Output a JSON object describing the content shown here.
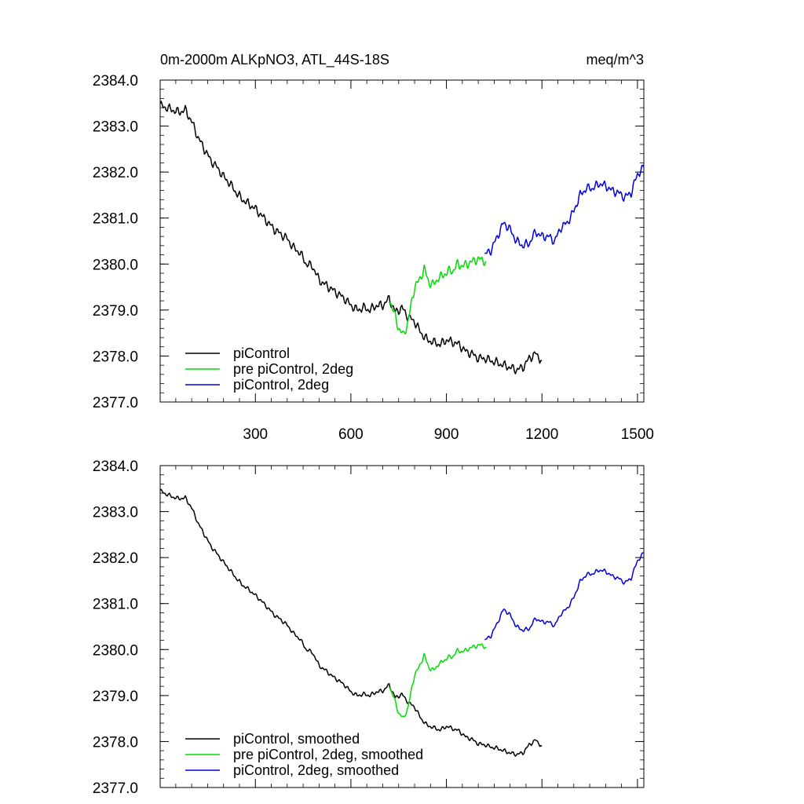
{
  "figure": {
    "title_left": "0m-2000m ALKpNO3, ATL_44S-18S",
    "title_right": "meq/m^3"
  },
  "chart_data": [
    {
      "type": "line",
      "title": "0m-2000m ALKpNO3, ATL_44S-18S",
      "units": "meq/m^3",
      "xlim": [
        1,
        1520
      ],
      "ylim": [
        2377.0,
        2384.0
      ],
      "x_ticks": [
        300,
        600,
        900,
        1200,
        1500
      ],
      "x_tick_labels": [
        "300",
        "600",
        "900",
        "1200",
        "1500"
      ],
      "y_ticks": [
        2377,
        2378,
        2379,
        2380,
        2381,
        2382,
        2383,
        2384
      ],
      "y_tick_labels": [
        "2377.0",
        "2378.0",
        "2379.0",
        "2380.0",
        "2381.0",
        "2382.0",
        "2383.0",
        "2384.0"
      ],
      "legend_position": "bottom-left",
      "series": [
        {
          "name": "piControl",
          "color": "#000000",
          "x": [
            1,
            20,
            40,
            60,
            80,
            100,
            120,
            140,
            160,
            180,
            200,
            220,
            240,
            260,
            280,
            300,
            320,
            340,
            360,
            380,
            400,
            420,
            440,
            460,
            480,
            500,
            520,
            540,
            560,
            580,
            600,
            620,
            640,
            660,
            680,
            700,
            720,
            740,
            760,
            780,
            800,
            820,
            840,
            860,
            880,
            900,
            920,
            940,
            960,
            980,
            1000,
            1020,
            1040,
            1060,
            1080,
            1100,
            1120,
            1140,
            1160,
            1180,
            1200
          ],
          "y": [
            2383.45,
            2383.4,
            2383.35,
            2383.3,
            2383.35,
            2383.1,
            2382.75,
            2382.5,
            2382.25,
            2382.1,
            2381.9,
            2381.75,
            2381.55,
            2381.4,
            2381.3,
            2381.2,
            2381.05,
            2380.9,
            2380.75,
            2380.65,
            2380.55,
            2380.35,
            2380.25,
            2380.0,
            2379.95,
            2379.65,
            2379.55,
            2379.45,
            2379.35,
            2379.25,
            2379.1,
            2379.0,
            2379.05,
            2379.0,
            2379.1,
            2379.1,
            2379.25,
            2378.95,
            2379.05,
            2378.85,
            2378.75,
            2378.5,
            2378.35,
            2378.3,
            2378.25,
            2378.35,
            2378.3,
            2378.25,
            2378.1,
            2378.05,
            2377.95,
            2377.95,
            2377.9,
            2377.85,
            2377.8,
            2377.75,
            2377.7,
            2377.75,
            2377.95,
            2378.05,
            2377.9
          ]
        },
        {
          "name": "pre piControl, 2deg",
          "color": "#00dd00",
          "x": [
            720,
            735,
            750,
            765,
            780,
            790,
            800,
            815,
            830,
            845,
            860,
            875,
            890,
            905,
            920,
            935,
            950,
            965,
            980,
            995,
            1010,
            1025
          ],
          "y": [
            2379.25,
            2378.95,
            2378.6,
            2378.45,
            2378.75,
            2379.15,
            2379.5,
            2379.65,
            2379.9,
            2379.6,
            2379.55,
            2379.7,
            2379.75,
            2379.85,
            2379.85,
            2380.0,
            2379.95,
            2380.0,
            2380.05,
            2380.1,
            2380.1,
            2380.05
          ]
        },
        {
          "name": "piControl, 2deg",
          "color": "#0000dd",
          "x": [
            1020,
            1040,
            1060,
            1080,
            1100,
            1120,
            1140,
            1160,
            1180,
            1200,
            1220,
            1240,
            1260,
            1280,
            1300,
            1320,
            1340,
            1360,
            1380,
            1400,
            1420,
            1440,
            1460,
            1480,
            1500,
            1520
          ],
          "y": [
            2380.2,
            2380.3,
            2380.6,
            2380.9,
            2380.75,
            2380.5,
            2380.4,
            2380.45,
            2380.7,
            2380.6,
            2380.6,
            2380.5,
            2380.8,
            2380.9,
            2381.15,
            2381.5,
            2381.65,
            2381.65,
            2381.75,
            2381.7,
            2381.6,
            2381.55,
            2381.45,
            2381.55,
            2381.95,
            2382.1
          ]
        }
      ]
    },
    {
      "type": "line",
      "xlim": [
        1,
        1520
      ],
      "ylim": [
        2377.0,
        2384.0
      ],
      "y_ticks": [
        2377,
        2378,
        2379,
        2380,
        2381,
        2382,
        2383,
        2384
      ],
      "y_tick_labels": [
        "2377.0",
        "2378.0",
        "2379.0",
        "2380.0",
        "2381.0",
        "2382.0",
        "2383.0",
        "2384.0"
      ],
      "legend_position": "bottom-left",
      "series": [
        {
          "name": "piControl, smoothed",
          "color": "#000000",
          "x": [
            1,
            20,
            40,
            60,
            80,
            100,
            120,
            140,
            160,
            180,
            200,
            220,
            240,
            260,
            280,
            300,
            320,
            340,
            360,
            380,
            400,
            420,
            440,
            460,
            480,
            500,
            520,
            540,
            560,
            580,
            600,
            620,
            640,
            660,
            680,
            700,
            720,
            740,
            760,
            780,
            800,
            820,
            840,
            860,
            880,
            900,
            920,
            940,
            960,
            980,
            1000,
            1020,
            1040,
            1060,
            1080,
            1100,
            1120,
            1140,
            1160,
            1180,
            1200
          ],
          "y": [
            2383.45,
            2383.38,
            2383.32,
            2383.28,
            2383.3,
            2383.08,
            2382.75,
            2382.5,
            2382.25,
            2382.08,
            2381.9,
            2381.73,
            2381.55,
            2381.4,
            2381.3,
            2381.18,
            2381.05,
            2380.9,
            2380.75,
            2380.65,
            2380.53,
            2380.35,
            2380.23,
            2380.0,
            2379.93,
            2379.65,
            2379.55,
            2379.43,
            2379.33,
            2379.23,
            2379.08,
            2379.0,
            2379.03,
            2379.0,
            2379.08,
            2379.1,
            2379.23,
            2378.95,
            2379.03,
            2378.85,
            2378.75,
            2378.5,
            2378.35,
            2378.3,
            2378.25,
            2378.33,
            2378.28,
            2378.23,
            2378.1,
            2378.05,
            2377.95,
            2377.93,
            2377.88,
            2377.85,
            2377.8,
            2377.75,
            2377.72,
            2377.75,
            2377.93,
            2378.03,
            2377.9
          ]
        },
        {
          "name": "pre piControl, 2deg, smoothed",
          "color": "#00dd00",
          "x": [
            720,
            735,
            750,
            765,
            780,
            790,
            800,
            815,
            830,
            845,
            860,
            875,
            890,
            905,
            920,
            935,
            950,
            965,
            980,
            995,
            1010,
            1025
          ],
          "y": [
            2379.22,
            2378.95,
            2378.62,
            2378.5,
            2378.75,
            2379.12,
            2379.45,
            2379.63,
            2379.88,
            2379.6,
            2379.55,
            2379.68,
            2379.75,
            2379.83,
            2379.85,
            2379.98,
            2379.95,
            2380.0,
            2380.05,
            2380.08,
            2380.1,
            2380.05
          ]
        },
        {
          "name": "piControl, 2deg, smoothed",
          "color": "#0000dd",
          "x": [
            1020,
            1040,
            1060,
            1080,
            1100,
            1120,
            1140,
            1160,
            1180,
            1200,
            1220,
            1240,
            1260,
            1280,
            1300,
            1320,
            1340,
            1360,
            1380,
            1400,
            1420,
            1440,
            1460,
            1480,
            1500,
            1520
          ],
          "y": [
            2380.2,
            2380.3,
            2380.58,
            2380.88,
            2380.75,
            2380.5,
            2380.42,
            2380.45,
            2380.68,
            2380.6,
            2380.6,
            2380.52,
            2380.78,
            2380.9,
            2381.13,
            2381.48,
            2381.63,
            2381.65,
            2381.73,
            2381.7,
            2381.6,
            2381.55,
            2381.45,
            2381.55,
            2381.93,
            2382.1
          ]
        }
      ]
    }
  ]
}
